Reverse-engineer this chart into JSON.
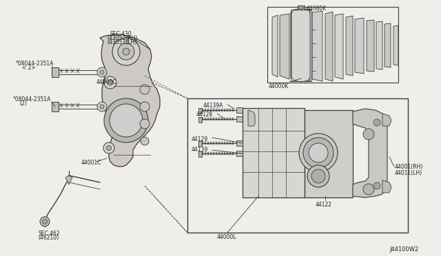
{
  "bg_color": "#f0eeeb",
  "line_color": "#3a3a3a",
  "text_color": "#222222",
  "diagram_id": "J44100W2",
  "figsize": [
    6.4,
    3.72
  ],
  "dpi": 100,
  "labels": {
    "44080K": "44080K",
    "44000K": "44000K",
    "44139A": "44139A",
    "44128": "44128",
    "44129": "44129",
    "44139": "44139",
    "44000L": "44000L",
    "44122": "44122",
    "44001RH": "44001(RH)\n44011(LH)",
    "44000C": "44000C",
    "44001C": "44001C",
    "sec430": "SEC.430\n(43052(RH)\n(43053(LH)",
    "b08044_1": "°08044-2351A\n< 2>",
    "b08044_2": "°08044-2351A\n(2)",
    "sec462": "SEC.462\n(46210)"
  }
}
